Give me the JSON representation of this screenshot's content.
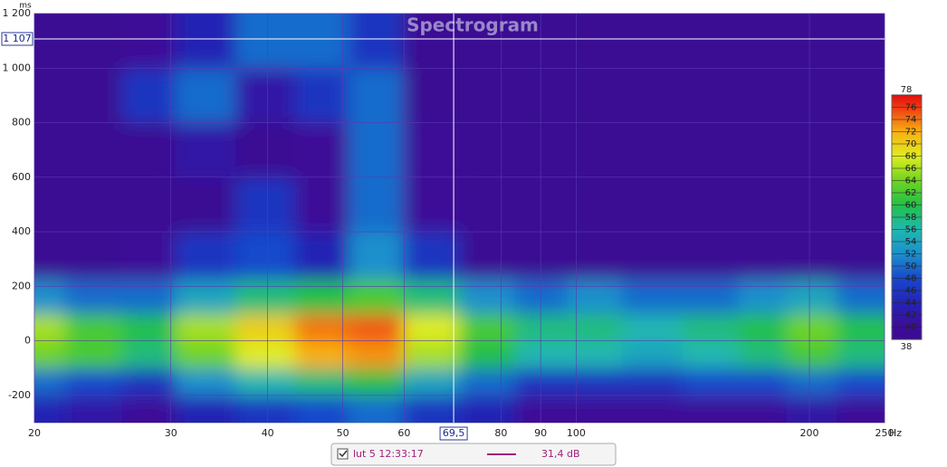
{
  "chart_data": {
    "type": "heatmap",
    "title": "Spectrogram",
    "x_unit": "Hz",
    "y_unit": "ms",
    "xscale": "log",
    "xlim": [
      20,
      250
    ],
    "ylim": [
      -300,
      1200
    ],
    "xticks": [
      20,
      30,
      40,
      50,
      60,
      80,
      90,
      100,
      200,
      250
    ],
    "yticks": [
      -200,
      0,
      200,
      400,
      600,
      800,
      {
        "value": 1000,
        "label": "1 000"
      },
      {
        "value": 1200,
        "label": "1 200"
      }
    ],
    "x": [
      20,
      24,
      28,
      33,
      40,
      47,
      55,
      65,
      77,
      90,
      105,
      125,
      150,
      175,
      200,
      235
    ],
    "y": [
      -250,
      -150,
      -50,
      50,
      150,
      300,
      500,
      700,
      900,
      1100
    ],
    "z": [
      [
        44,
        42,
        40,
        44,
        46,
        48,
        50,
        46,
        44,
        40,
        40,
        40,
        40,
        40,
        42,
        40
      ],
      [
        50,
        48,
        46,
        52,
        56,
        58,
        60,
        54,
        50,
        46,
        46,
        46,
        48,
        48,
        50,
        48
      ],
      [
        64,
        62,
        58,
        64,
        68,
        72,
        73,
        66,
        60,
        56,
        56,
        54,
        56,
        58,
        62,
        58
      ],
      [
        66,
        62,
        60,
        66,
        70,
        74,
        75,
        68,
        62,
        58,
        58,
        56,
        58,
        60,
        64,
        60
      ],
      [
        52,
        50,
        50,
        54,
        58,
        60,
        62,
        58,
        52,
        50,
        52,
        50,
        50,
        52,
        54,
        50
      ],
      [
        38,
        38,
        40,
        46,
        48,
        44,
        52,
        46,
        38,
        38,
        38,
        38,
        38,
        38,
        38,
        38
      ],
      [
        38,
        38,
        38,
        38,
        46,
        40,
        50,
        40,
        38,
        38,
        38,
        38,
        38,
        38,
        38,
        38
      ],
      [
        38,
        38,
        38,
        42,
        38,
        40,
        50,
        40,
        38,
        38,
        38,
        38,
        38,
        38,
        38,
        38
      ],
      [
        38,
        38,
        46,
        50,
        42,
        46,
        50,
        38,
        38,
        38,
        38,
        38,
        38,
        38,
        38,
        38
      ],
      [
        38,
        38,
        40,
        44,
        50,
        50,
        46,
        38,
        38,
        38,
        38,
        38,
        38,
        38,
        38,
        38
      ]
    ],
    "colorbar": {
      "lim": [
        38,
        78
      ],
      "ticks": [
        38,
        40,
        42,
        44,
        46,
        48,
        50,
        52,
        54,
        56,
        58,
        60,
        62,
        64,
        66,
        68,
        70,
        72,
        74,
        76,
        78
      ]
    },
    "cursor": {
      "x": {
        "value": 69.5,
        "label": "69,5"
      },
      "y": {
        "value": 1107,
        "label": "1 107"
      }
    },
    "legend": {
      "checked": true,
      "label": "lut 5 12:33:17",
      "color": "#a0207a",
      "value": "31,4 dB"
    }
  }
}
